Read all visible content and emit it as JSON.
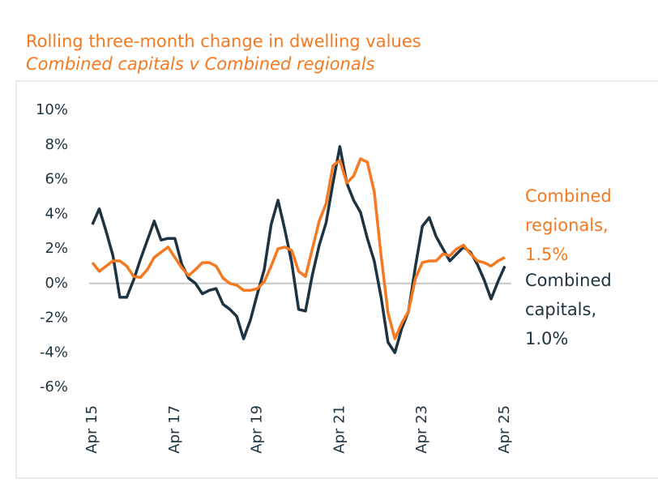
{
  "chart_data": {
    "type": "line",
    "title": "Rolling three-month change in dwelling values",
    "subtitle": "Combined capitals v Combined regionals",
    "categories": [
      "Apr 15",
      null,
      null,
      null,
      null,
      null,
      null,
      null,
      null,
      null,
      null,
      null,
      "Apr 17",
      null,
      null,
      null,
      null,
      null,
      null,
      null,
      null,
      null,
      null,
      null,
      "Apr 19",
      null,
      null,
      null,
      null,
      null,
      null,
      null,
      null,
      null,
      null,
      null,
      "Apr 21",
      null,
      null,
      null,
      null,
      null,
      null,
      null,
      null,
      null,
      null,
      null,
      "Apr 23",
      null,
      null,
      null,
      null,
      null,
      null,
      null,
      null,
      null,
      null,
      null,
      "Apr 25"
    ],
    "series": [
      {
        "name": "Combined capitals",
        "color": "#1d3341",
        "label_lines": [
          "Combined",
          "capitals,",
          "1.0%"
        ],
        "values": [
          3.4,
          4.3,
          3.0,
          1.6,
          -0.8,
          -0.8,
          0.2,
          1.4,
          2.5,
          3.6,
          2.5,
          2.6,
          2.6,
          1.1,
          0.3,
          0.0,
          -0.6,
          -0.4,
          -0.3,
          -1.2,
          -1.5,
          -1.9,
          -3.2,
          -2.1,
          -0.6,
          0.8,
          3.4,
          4.8,
          3.1,
          1.2,
          -1.5,
          -1.6,
          0.5,
          2.2,
          3.5,
          5.8,
          7.9,
          5.8,
          4.8,
          4.1,
          2.6,
          1.3,
          -0.8,
          -3.4,
          -4.0,
          -2.6,
          -1.6,
          1.0,
          3.3,
          3.8,
          2.7,
          2.0,
          1.3,
          1.7,
          2.1,
          1.8,
          1.1,
          0.2,
          -0.9,
          0.1,
          1.0
        ]
      },
      {
        "name": "Combined regionals",
        "color": "#f47920",
        "label_lines": [
          "Combined",
          "regionals,",
          "1.5%"
        ],
        "values": [
          1.2,
          0.7,
          1.0,
          1.3,
          1.3,
          1.0,
          0.4,
          0.35,
          0.8,
          1.5,
          1.8,
          2.1,
          1.5,
          0.9,
          0.45,
          0.8,
          1.2,
          1.2,
          1.0,
          0.3,
          0.0,
          -0.1,
          -0.4,
          -0.4,
          -0.3,
          0.1,
          1.0,
          2.0,
          2.1,
          1.9,
          0.7,
          0.4,
          2.0,
          3.6,
          4.6,
          6.8,
          7.1,
          5.8,
          6.2,
          7.2,
          7.0,
          5.3,
          1.6,
          -1.7,
          -3.2,
          -2.3,
          -1.6,
          0.3,
          1.2,
          1.3,
          1.3,
          1.7,
          1.6,
          2.0,
          2.2,
          1.7,
          1.3,
          1.2,
          1.0,
          1.3,
          1.5
        ]
      }
    ],
    "ylim": [
      -6,
      10
    ],
    "yticks": [
      {
        "value": -6,
        "label": "-6%"
      },
      {
        "value": -4,
        "label": "-4%"
      },
      {
        "value": -2,
        "label": "-2%"
      },
      {
        "value": 0,
        "label": "0%"
      },
      {
        "value": 2,
        "label": "2%"
      },
      {
        "value": 4,
        "label": "4%"
      },
      {
        "value": 6,
        "label": "6%"
      },
      {
        "value": 8,
        "label": "8%"
      },
      {
        "value": 10,
        "label": "10%"
      }
    ],
    "grid": false,
    "zero_line": true
  }
}
